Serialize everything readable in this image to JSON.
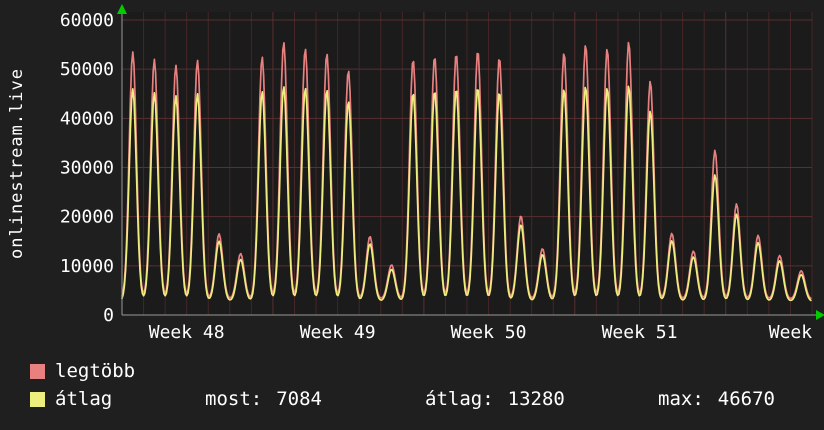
{
  "colors": {
    "background": "#1f1f1f",
    "plot_bg": "#1b1b1b",
    "grid_minor": "#462626",
    "grid_major": "#5a2f2f",
    "axis": "#9a9a9a",
    "text": "#ffffff",
    "arrow": "#00cc00",
    "series_red": "#e98080",
    "series_yellow": "#eeee7e"
  },
  "chart_data": {
    "type": "line",
    "title": "",
    "ylabel": "onlinestream.live",
    "xlabel": "",
    "x_tick_labels": [
      "Week 48",
      "Week 49",
      "Week 50",
      "Week 51",
      "Week"
    ],
    "y_ticks": [
      0,
      10000,
      20000,
      30000,
      40000,
      50000,
      60000
    ],
    "ylim": [
      0,
      60000
    ],
    "grid": true,
    "legend_position": "bottom-left",
    "x_unit": "day",
    "series": [
      {
        "name": "legtöbb",
        "color": "#e98080",
        "baseline": 3200,
        "daily_peaks": [
          53500,
          52000,
          50800,
          51800,
          16500,
          12500,
          52500,
          55500,
          54200,
          53200,
          49800,
          16000,
          10200,
          52000,
          52600,
          53200,
          53800,
          52400,
          20200,
          13500,
          53400,
          55000,
          54200,
          55600,
          47600,
          16600,
          13000,
          33500,
          22600,
          16200,
          12100,
          9000
        ]
      },
      {
        "name": "átlag",
        "color": "#eeee7e",
        "baseline": 2800,
        "daily_peaks": [
          46000,
          45200,
          44600,
          45000,
          15000,
          11300,
          45500,
          46500,
          46200,
          45800,
          43500,
          14500,
          9300,
          45200,
          45600,
          46000,
          46300,
          45400,
          18400,
          12300,
          46000,
          46500,
          46200,
          46670,
          41500,
          15100,
          11800,
          28500,
          20500,
          14700,
          11000,
          8200
        ]
      }
    ]
  },
  "legend": {
    "items": [
      {
        "label": "legtöbb",
        "color": "#e98080"
      },
      {
        "label": "átlag",
        "color": "#eeee7e"
      }
    ]
  },
  "stats": {
    "most_label": "most:",
    "most_value": "7084",
    "avg_label": "átlag:",
    "avg_value": "13280",
    "max_label": "max:",
    "max_value": "46670"
  }
}
